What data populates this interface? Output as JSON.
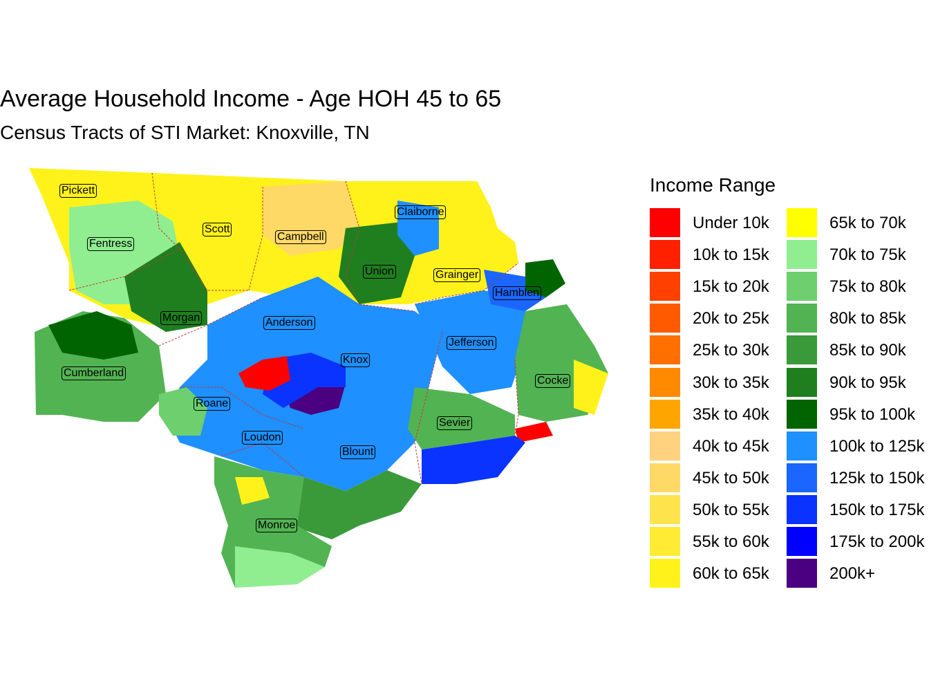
{
  "title": "Average Household Income - Age HOH 45 to 65",
  "subtitle": "Census Tracts of STI Market: Knoxville, TN",
  "legend": {
    "title": "Income Range",
    "items": [
      {
        "label": "Under 10k",
        "color": "#FF0000"
      },
      {
        "label": "10k to 15k",
        "color": "#FF2000"
      },
      {
        "label": "15k to 20k",
        "color": "#FF4000"
      },
      {
        "label": "20k to 25k",
        "color": "#FF5A00"
      },
      {
        "label": "25k to 30k",
        "color": "#FF7000"
      },
      {
        "label": "30k to 35k",
        "color": "#FF8A00"
      },
      {
        "label": "35k to 40k",
        "color": "#FFA500"
      },
      {
        "label": "40k to 45k",
        "color": "#FFD280"
      },
      {
        "label": "45k to 50k",
        "color": "#FFD966"
      },
      {
        "label": "50k to 55k",
        "color": "#FFE34D"
      },
      {
        "label": "55k to 60k",
        "color": "#FFEB33"
      },
      {
        "label": "60k to 65k",
        "color": "#FFF21A"
      },
      {
        "label": "65k to 70k",
        "color": "#FFFF00"
      },
      {
        "label": "70k to 75k",
        "color": "#90EE90"
      },
      {
        "label": "75k to 80k",
        "color": "#6DCF6D"
      },
      {
        "label": "80k to 85k",
        "color": "#52B352"
      },
      {
        "label": "85k to 90k",
        "color": "#3A9A3A"
      },
      {
        "label": "90k to 95k",
        "color": "#1F7F1F"
      },
      {
        "label": "95k to 100k",
        "color": "#006400"
      },
      {
        "label": "100k to 125k",
        "color": "#1E90FF"
      },
      {
        "label": "125k to 150k",
        "color": "#1A66FF"
      },
      {
        "label": "150k to 175k",
        "color": "#0A33FF"
      },
      {
        "label": "175k to 200k",
        "color": "#0000FF"
      },
      {
        "label": "200k+",
        "color": "#4B0082"
      }
    ]
  },
  "counties": [
    "Pickett",
    "Scott",
    "Campbell",
    "Claiborne",
    "Fentress",
    "Union",
    "Grainger",
    "Hamblen",
    "Morgan",
    "Anderson",
    "Jefferson",
    "Knox",
    "Cumberland",
    "Cocke",
    "Roane",
    "Sevier",
    "Loudon",
    "Blount",
    "Monroe"
  ]
}
